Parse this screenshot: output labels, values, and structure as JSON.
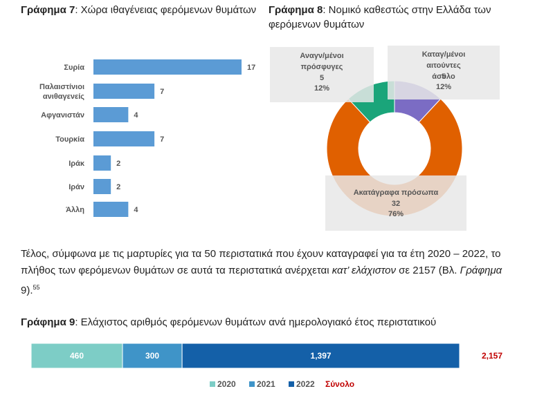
{
  "chart_data": [
    {
      "type": "hbar",
      "label": "Γράφημα 7",
      "title": ": Χώρα ιθαγένειας φερόμενων θυμάτων",
      "categories": [
        "Συρία",
        "Παλαιστίνιοι ανιθαγενείς",
        "Αφγανιστάν",
        "Τουρκία",
        "Ιράκ",
        "Ιράν",
        "Άλλη"
      ],
      "values": [
        17,
        7,
        4,
        7,
        2,
        2,
        4
      ],
      "color": "#5b9bd5"
    },
    {
      "type": "donut",
      "label": "Γράφημα 8",
      "title": ": Νομικό καθεστώς στην Ελλάδα των φερόμενων θυμάτων",
      "categories": [
        "Καταγ/μένοι αιτούντες άσυλο",
        "Ακατάγραφα πρόσωπα",
        "Αναγν/μένοι πρόσφυγες"
      ],
      "values": [
        5,
        32,
        5
      ],
      "percents": [
        12,
        76,
        12
      ],
      "percent_labels": [
        "12%",
        "76%",
        "12%"
      ],
      "colors": [
        "#7b6cc4",
        "#e06000",
        "#1aa57a"
      ]
    },
    {
      "type": "stacked",
      "label": "Γράφημα 9",
      "title": ": Ελάχιστος αριθμός φερόμενων θυμάτων ανά ημερολογιακό έτος περιστατικού",
      "series": [
        {
          "name": "2020",
          "color": "#7dcdc6",
          "values": [
            460
          ]
        },
        {
          "name": "2021",
          "color": "#3f94c8",
          "values": [
            300
          ]
        },
        {
          "name": "2022",
          "color": "#1460a8",
          "values": [
            1397
          ],
          "value_labels": [
            "1,397"
          ]
        }
      ],
      "total": {
        "name": "Σύνολο",
        "color": "#c00000",
        "value": 2157,
        "label": "2,157"
      }
    }
  ],
  "paragraph": [
    "Τέλος, σύμφωνα με τις μαρτυρίες για τα 50 περιστατικά που έχουν καταγραφεί για τα έτη 2020 – 2022, το πλήθος των φερόμενων θυμάτων σε αυτά τα περιστατικά ανέρχεται ",
    "κατ’ ελάχιστον",
    " σε 2157 (Βλ. ",
    "Γράφημα",
    " 9).",
    "55"
  ]
}
